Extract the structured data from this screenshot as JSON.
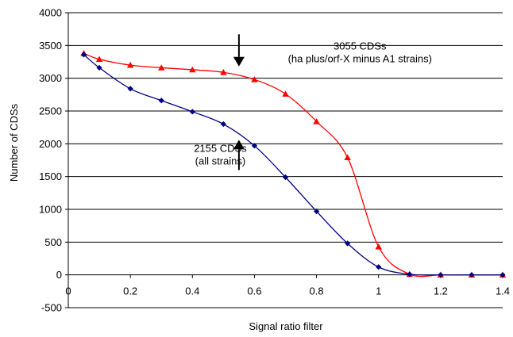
{
  "chart_data": {
    "type": "line",
    "xlabel": "Signal ratio filter",
    "ylabel": "Number of CDSs",
    "xlim": [
      0,
      1.4
    ],
    "ylim": [
      -500,
      4000
    ],
    "xticks": [
      "0",
      "0.2",
      "0.4",
      "0.6",
      "0.8",
      "1",
      "1.2",
      "1.4"
    ],
    "yticks": [
      "-500",
      "0",
      "500",
      "1000",
      "1500",
      "2000",
      "2500",
      "3000",
      "3500",
      "4000"
    ],
    "grid": "horizontal",
    "legend": "none",
    "series": [
      {
        "color": "#ff0000",
        "marker": "triangle",
        "x": [
          0.05,
          0.1,
          0.2,
          0.3,
          0.4,
          0.5,
          0.6,
          0.7,
          0.8,
          0.9,
          1.0,
          1.1,
          1.2,
          1.3,
          1.4
        ],
        "y": [
          3380,
          3290,
          3200,
          3160,
          3130,
          3090,
          2980,
          2760,
          2340,
          1790,
          430,
          10,
          0,
          0,
          0
        ]
      },
      {
        "color": "#000080",
        "marker": "diamond",
        "x": [
          0.05,
          0.1,
          0.2,
          0.3,
          0.4,
          0.5,
          0.6,
          0.7,
          0.8,
          0.9,
          1.0,
          1.1,
          1.2,
          1.3,
          1.4
        ],
        "y": [
          3360,
          3160,
          2840,
          2660,
          2490,
          2300,
          1970,
          1490,
          970,
          480,
          120,
          10,
          0,
          0,
          0
        ]
      }
    ],
    "annotations": [
      {
        "lines": [
          "3055 CDSs",
          "(ha plus/orf-X minus A1 strains)"
        ],
        "x": 0.94,
        "y": 3440,
        "arrow": {
          "from": 3670,
          "to": 3180
        }
      },
      {
        "lines": [
          "2155 CDSs",
          "(all strains)"
        ],
        "x": 0.49,
        "y": 1880,
        "arrow": {
          "from": 1600,
          "to": 2060
        }
      }
    ]
  }
}
